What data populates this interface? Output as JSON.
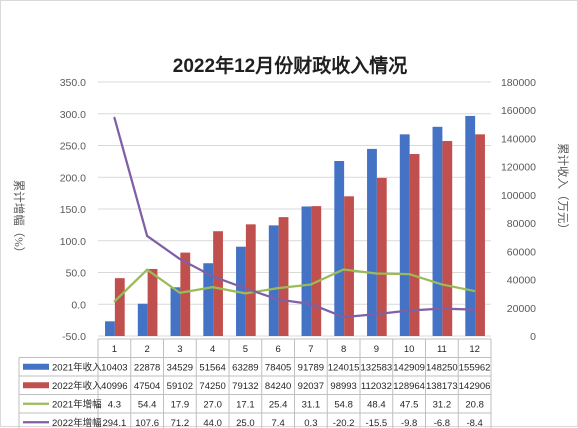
{
  "chart_data": {
    "type": "bar",
    "title": "2022年12月份财政收入情况",
    "ylabel_left": "累计增幅（%）",
    "ylabel_right": "累计收入（万元）",
    "categories": [
      "1",
      "2",
      "3",
      "4",
      "5",
      "6",
      "7",
      "8",
      "9",
      "10",
      "11",
      "12"
    ],
    "ylim_left": [
      -50,
      350
    ],
    "ylim_right": [
      0,
      180000
    ],
    "yticks_left": [
      "350.0",
      "300.0",
      "250.0",
      "200.0",
      "150.0",
      "100.0",
      "50.0",
      "0.0",
      "-50.0"
    ],
    "yticks_right": [
      "180000",
      "160000",
      "140000",
      "120000",
      "100000",
      "80000",
      "60000",
      "40000",
      "20000",
      "0"
    ],
    "grid": true,
    "series": [
      {
        "name": "2021年收入",
        "kind": "bar",
        "axis": "right",
        "color": "#4472c4",
        "values": [
          10403,
          22878,
          34529,
          51564,
          63289,
          78405,
          91789,
          124015,
          132583,
          142909,
          148250,
          155962
        ],
        "labels": [
          "10403",
          "22878",
          "34529",
          "51564",
          "63289",
          "78405",
          "91789",
          "124015",
          "132583",
          "142909",
          "148250",
          "155962"
        ]
      },
      {
        "name": "2022年收入",
        "kind": "bar",
        "axis": "right",
        "color": "#c0504d",
        "values": [
          40996,
          47504,
          59102,
          74250,
          79132,
          84240,
          92037,
          98993,
          112032,
          128964,
          138173,
          142906
        ],
        "labels": [
          "40996",
          "47504",
          "59102",
          "74250",
          "79132",
          "84240",
          "92037",
          "98993",
          "112032",
          "128964",
          "138173",
          "142906"
        ]
      },
      {
        "name": "2021年增幅",
        "kind": "line",
        "axis": "left",
        "color": "#9bbb59",
        "values": [
          4.3,
          54.4,
          17.9,
          27.0,
          17.1,
          25.4,
          31.1,
          54.8,
          48.4,
          47.5,
          31.2,
          20.8
        ],
        "labels": [
          "4.3",
          "54.4",
          "17.9",
          "27.0",
          "17.1",
          "25.4",
          "31.1",
          "54.8",
          "48.4",
          "47.5",
          "31.2",
          "20.8"
        ]
      },
      {
        "name": "2022年增幅",
        "kind": "line",
        "axis": "left",
        "color": "#7f5fa6",
        "values": [
          294.1,
          107.6,
          71.2,
          44.0,
          25.0,
          7.4,
          0.3,
          -20.2,
          -15.5,
          -9.8,
          -6.8,
          -8.4
        ],
        "labels": [
          "294.1",
          "107.6",
          "71.2",
          "44.0",
          "25.0",
          "7.4",
          "0.3",
          "-20.2",
          "-15.5",
          "-9.8",
          "-6.8",
          "-8.4"
        ]
      }
    ]
  }
}
